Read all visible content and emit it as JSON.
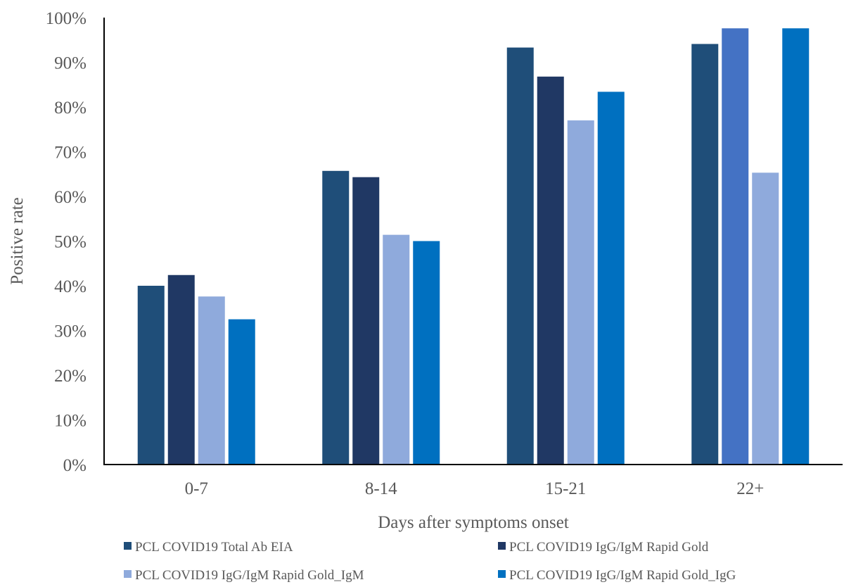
{
  "chart_data": {
    "type": "bar",
    "title": "",
    "xlabel": "Days after symptoms onset",
    "ylabel": "Positive rate",
    "ylim": [
      0,
      100
    ],
    "yticks": [
      "0%",
      "10%",
      "20%",
      "30%",
      "40%",
      "50%",
      "60%",
      "70%",
      "80%",
      "90%",
      "100%"
    ],
    "categories": [
      "0-7",
      "8-14",
      "15-21",
      "22+"
    ],
    "grid": false,
    "legend_position": "bottom",
    "series": [
      {
        "name": "PCL COVID19 Total Ab EIA",
        "color": "#1f4e79",
        "values": [
          40,
          65.7,
          93.3,
          94.1
        ]
      },
      {
        "name": "PCL COVID19 IgG/IgM Rapid Gold",
        "color": "#203864",
        "values": [
          42.4,
          64.3,
          86.8,
          97.6
        ],
        "point_colors": [
          null,
          null,
          null,
          "#4472c4"
        ]
      },
      {
        "name": "PCL COVID19 IgG/IgM Rapid Gold_IgM",
        "color": "#8faadc",
        "values": [
          37.6,
          51.4,
          77,
          65.3
        ]
      },
      {
        "name": "PCL COVID19 IgG/IgM Rapid Gold_IgG",
        "color": "#0070c0",
        "values": [
          32.5,
          50,
          83.4,
          97.6
        ]
      }
    ]
  }
}
